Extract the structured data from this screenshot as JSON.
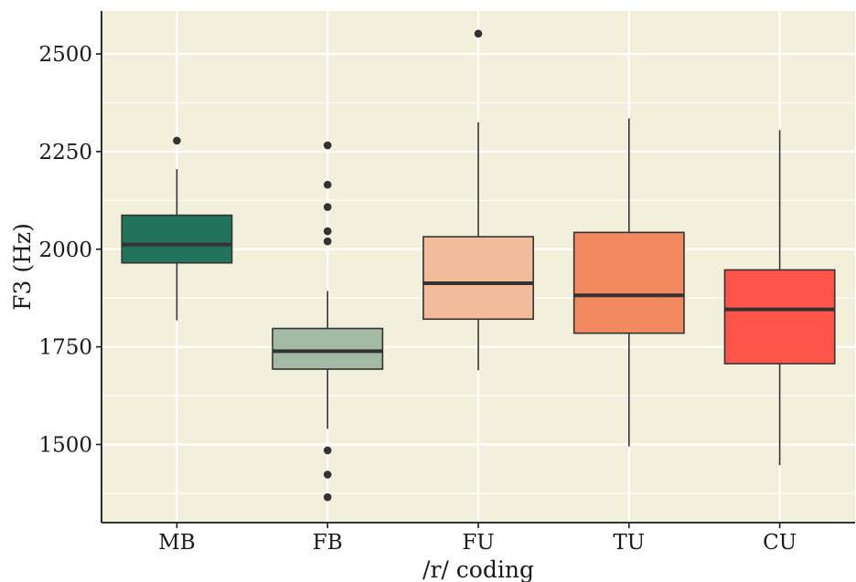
{
  "chart_data": {
    "type": "boxplot",
    "xlabel": "/r/ coding",
    "ylabel": "F3 (Hz)",
    "ylim": [
      1300,
      2610
    ],
    "yticks": [
      1500,
      1750,
      2000,
      2250,
      2500
    ],
    "grid": true,
    "legend": "none",
    "colors": {
      "panel_background": "#f2f0da",
      "grid": "#ffffff",
      "axis": "#1a1a1a",
      "box_stroke": "#333333"
    },
    "categories": [
      "MB",
      "FB",
      "FU",
      "TU",
      "CU"
    ],
    "boxes": [
      {
        "category": "MB",
        "color": "#21735a",
        "lower_whisker": 1818,
        "q1": 1965,
        "median": 2012,
        "q3": 2087,
        "upper_whisker": 2205,
        "outliers": [
          2278
        ]
      },
      {
        "category": "FB",
        "color": "#a3bba4",
        "lower_whisker": 1540,
        "q1": 1693,
        "median": 1739,
        "q3": 1797,
        "upper_whisker": 1893,
        "outliers": [
          2266,
          2165,
          2108,
          2046,
          2020,
          1485,
          1423,
          1365
        ]
      },
      {
        "category": "FU",
        "color": "#f2bc9b",
        "lower_whisker": 1690,
        "q1": 1821,
        "median": 1913,
        "q3": 2032,
        "upper_whisker": 2325,
        "outliers": [
          2552
        ]
      },
      {
        "category": "TU",
        "color": "#f28a5f",
        "lower_whisker": 1495,
        "q1": 1785,
        "median": 1882,
        "q3": 2043,
        "upper_whisker": 2335,
        "outliers": []
      },
      {
        "category": "CU",
        "color": "#ff5449",
        "lower_whisker": 1447,
        "q1": 1707,
        "median": 1846,
        "q3": 1947,
        "upper_whisker": 2305,
        "outliers": []
      }
    ]
  }
}
